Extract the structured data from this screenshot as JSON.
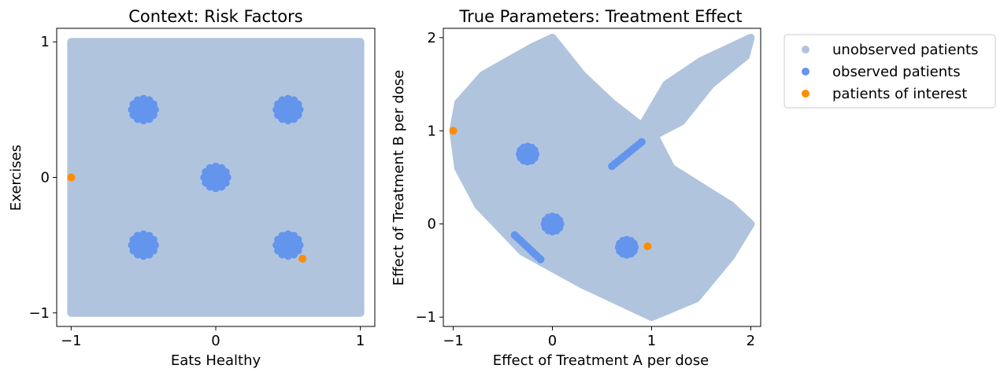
{
  "colors": {
    "unobserved": "#b0c4de",
    "observed": "#6495ed",
    "interest": "#ff8c00"
  },
  "legend": {
    "placement": "outside-right",
    "entries": [
      {
        "label": "unobserved patients",
        "color": "#b0c4de"
      },
      {
        "label": "observed patients",
        "color": "#6495ed"
      },
      {
        "label": "patients of interest",
        "color": "#ff8c00"
      }
    ]
  },
  "chart_data": [
    {
      "type": "scatter",
      "title": "Context: Risk Factors",
      "xlabel": "Eats Healthy",
      "ylabel": "Exercises",
      "xlim": [
        -1.1,
        1.1
      ],
      "ylim": [
        -1.1,
        1.1
      ],
      "xticks": [
        -1,
        0,
        1
      ],
      "yticks": [
        -1,
        0,
        1
      ],
      "xtick_labels": [
        "−1",
        "0",
        "1"
      ],
      "ytick_labels": [
        "−1",
        "0",
        "1"
      ],
      "grid": false,
      "series": [
        {
          "name": "unobserved patients",
          "color": "#b0c4de",
          "region": {
            "shape": "square",
            "x": [
              -1,
              1
            ],
            "y": [
              -1,
              1
            ],
            "step": 0.02
          }
        },
        {
          "name": "observed patients",
          "color": "#6495ed",
          "clusters": [
            {
              "center": [
                -0.5,
                0.5
              ],
              "radius": 0.1
            },
            {
              "center": [
                0.5,
                0.5
              ],
              "radius": 0.1
            },
            {
              "center": [
                0.0,
                0.0
              ],
              "radius": 0.1
            },
            {
              "center": [
                -0.5,
                -0.5
              ],
              "radius": 0.1
            },
            {
              "center": [
                0.5,
                -0.5
              ],
              "radius": 0.1
            }
          ]
        },
        {
          "name": "patients of interest",
          "color": "#ff8c00",
          "points": [
            [
              -1.0,
              0.0
            ],
            [
              0.6,
              -0.6
            ]
          ]
        }
      ]
    },
    {
      "type": "scatter",
      "title": "True Parameters: Treatment Effect",
      "xlabel": "Effect of Treatment A per dose",
      "ylabel": "Effect of Treatment B per dose",
      "xlim": [
        -1.1,
        2.1
      ],
      "ylim": [
        -1.1,
        2.1
      ],
      "xticks": [
        -1,
        0,
        1,
        2
      ],
      "yticks": [
        -1,
        0,
        1,
        2
      ],
      "xtick_labels": [
        "−1",
        "0",
        "1",
        "2"
      ],
      "ytick_labels": [
        "−1",
        "0",
        "1",
        "2"
      ],
      "grid": false,
      "series": [
        {
          "name": "unobserved patients",
          "color": "#b0c4de",
          "region": {
            "shape": "mapped-square",
            "note": "image of the context square under the parameter map",
            "outline": [
              [
                -1,
                1
              ],
              [
                -0.95,
                1.3
              ],
              [
                -0.7,
                1.6
              ],
              [
                -0.2,
                1.9
              ],
              [
                0,
                2
              ],
              [
                0.3,
                1.6
              ],
              [
                0.6,
                1.3
              ],
              [
                0.9,
                1.05
              ],
              [
                1.15,
                1.5
              ],
              [
                1.5,
                1.75
              ],
              [
                2,
                2
              ],
              [
                1.95,
                1.8
              ],
              [
                1.6,
                1.5
              ],
              [
                1.3,
                1.1
              ],
              [
                1.03,
                0.95
              ],
              [
                1.2,
                0.6
              ],
              [
                1.5,
                0.4
              ],
              [
                1.8,
                0.2
              ],
              [
                2,
                0
              ],
              [
                1.8,
                -0.35
              ],
              [
                1.45,
                -0.8
              ],
              [
                1.0,
                -1.0
              ],
              [
                0.7,
                -0.85
              ],
              [
                0.3,
                -0.65
              ],
              [
                -0.3,
                -0.3
              ],
              [
                -0.75,
                0.2
              ],
              [
                -0.95,
                0.6
              ]
            ],
            "step": 0.02
          }
        },
        {
          "name": "observed patients",
          "color": "#6495ed",
          "clusters": [
            {
              "center": [
                -0.25,
                0.75
              ],
              "radius": 0.1
            },
            {
              "center": [
                0.0,
                0.0
              ],
              "radius": 0.1
            },
            {
              "center": [
                0.75,
                -0.25
              ],
              "radius": 0.1
            }
          ],
          "segments": [
            {
              "from": [
                0.6,
                0.62
              ],
              "to": [
                0.9,
                0.88
              ]
            },
            {
              "from": [
                -0.38,
                -0.12
              ],
              "to": [
                -0.12,
                -0.38
              ]
            }
          ]
        },
        {
          "name": "patients of interest",
          "color": "#ff8c00",
          "points": [
            [
              -1.0,
              1.0
            ],
            [
              0.96,
              -0.24
            ]
          ]
        }
      ]
    }
  ]
}
